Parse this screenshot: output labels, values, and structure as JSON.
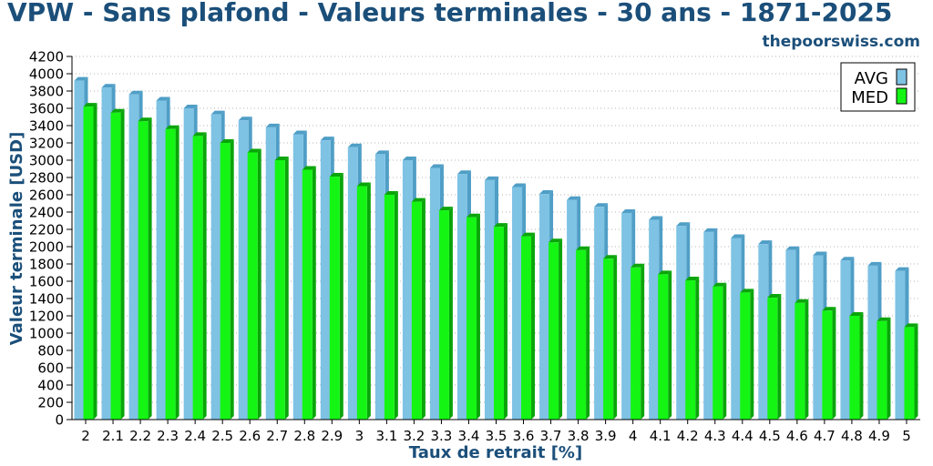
{
  "colors": {
    "title": "#1b4f7a",
    "avg": "#7ec2e4",
    "avg_dark": "#4f9ec6",
    "med": "#14f514",
    "med_dark": "#0aa50a",
    "grid": "#b5b5b5"
  },
  "chart_data": {
    "type": "bar",
    "title": "VPW - Sans plafond - Valeurs terminales - 30 ans - 1871-2025",
    "subtitle": "thepoorswiss.com",
    "xlabel": "Taux de retrait [%]",
    "ylabel": "Valeur terminale [USD]",
    "ylim": [
      0,
      4200
    ],
    "yticks": [
      "0",
      "200",
      "400",
      "600",
      "800",
      "1000",
      "1200",
      "1400",
      "1600",
      "1800",
      "2000",
      "2200",
      "2400",
      "2600",
      "2800",
      "3000",
      "3200",
      "3400",
      "3600",
      "3800",
      "4000",
      "4200"
    ],
    "grid": true,
    "legend_position": "top-right",
    "categories": [
      "2",
      "2.1",
      "2.2",
      "2.3",
      "2.4",
      "2.5",
      "2.6",
      "2.7",
      "2.8",
      "2.9",
      "3",
      "3.1",
      "3.2",
      "3.3",
      "3.4",
      "3.5",
      "3.6",
      "3.7",
      "3.8",
      "3.9",
      "4",
      "4.1",
      "4.2",
      "4.3",
      "4.4",
      "4.5",
      "4.6",
      "4.7",
      "4.8",
      "4.9",
      "5"
    ],
    "series": [
      {
        "name": "AVG",
        "values": [
          3920,
          3840,
          3760,
          3690,
          3600,
          3530,
          3460,
          3380,
          3300,
          3230,
          3150,
          3070,
          3000,
          2910,
          2840,
          2770,
          2690,
          2610,
          2540,
          2460,
          2390,
          2310,
          2240,
          2170,
          2100,
          2030,
          1960,
          1900,
          1840,
          1780,
          1720
        ]
      },
      {
        "name": "MED",
        "values": [
          3620,
          3550,
          3450,
          3360,
          3280,
          3200,
          3090,
          3000,
          2890,
          2810,
          2700,
          2600,
          2520,
          2420,
          2340,
          2230,
          2120,
          2050,
          1960,
          1860,
          1760,
          1680,
          1610,
          1540,
          1470,
          1410,
          1350,
          1260,
          1200,
          1140,
          1070
        ]
      }
    ]
  }
}
